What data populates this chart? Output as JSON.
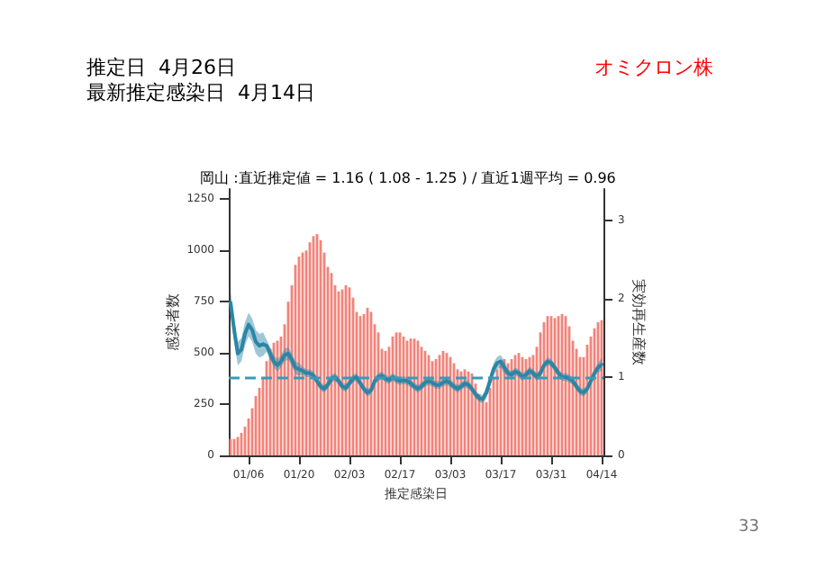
{
  "chart_data": {
    "type": "bar",
    "title": "岡山 :直近推定値 = 1.16 ( 1.08 - 1.25 ) / 直近1週平均 = 0.96",
    "xlabel": "推定感染日",
    "ylabel": "感染者数",
    "y2label": "実効再生産数",
    "annotations": [
      "推定日  4月26日",
      "最新推定感染日  4月14日",
      "オミクロン株",
      "33"
    ],
    "categories": [
      null,
      null,
      null,
      null,
      null,
      "01/06",
      null,
      null,
      null,
      null,
      null,
      null,
      null,
      null,
      null,
      null,
      null,
      null,
      null,
      "01/20",
      null,
      null,
      null,
      null,
      null,
      null,
      null,
      null,
      null,
      null,
      null,
      null,
      null,
      "02/03",
      null,
      null,
      null,
      null,
      null,
      null,
      null,
      null,
      null,
      null,
      null,
      null,
      null,
      "02/17",
      null,
      null,
      null,
      null,
      null,
      null,
      null,
      null,
      null,
      null,
      null,
      null,
      null,
      "03/03",
      null,
      null,
      null,
      null,
      null,
      null,
      null,
      null,
      null,
      null,
      null,
      null,
      null,
      "03/17",
      null,
      null,
      null,
      null,
      null,
      null,
      null,
      null,
      null,
      null,
      null,
      null,
      null,
      "03/31",
      null,
      null,
      null,
      null,
      null,
      null,
      null,
      null,
      null,
      null,
      null,
      null,
      null,
      "04/14"
    ],
    "series": [
      {
        "color": "#f2837a",
        "values": [
          80,
          80,
          90,
          110,
          140,
          180,
          230,
          290,
          330,
          380,
          460,
          520,
          550,
          560,
          580,
          640,
          750,
          830,
          930,
          970,
          990,
          1000,
          1040,
          1070,
          1080,
          1050,
          990,
          920,
          890,
          830,
          800,
          810,
          830,
          820,
          770,
          700,
          680,
          690,
          720,
          700,
          640,
          600,
          520,
          510,
          530,
          580,
          600,
          600,
          580,
          560,
          570,
          570,
          560,
          530,
          510,
          490,
          460,
          470,
          490,
          510,
          500,
          480,
          450,
          420,
          410,
          420,
          410,
          400,
          350,
          300,
          270,
          260,
          330,
          380,
          420,
          450,
          470,
          450,
          470,
          490,
          500,
          480,
          470,
          480,
          490,
          530,
          600,
          650,
          680,
          680,
          670,
          680,
          690,
          680,
          630,
          560,
          520,
          480,
          480,
          540,
          580,
          620,
          650,
          660
        ]
      },
      {
        "type": "line",
        "axis": "y2",
        "color": "#2b86a6",
        "values": [
          1.95,
          1.6,
          1.3,
          1.35,
          1.55,
          1.67,
          1.6,
          1.45,
          1.4,
          1.42,
          1.4,
          1.3,
          1.2,
          1.15,
          1.2,
          1.28,
          1.3,
          1.22,
          1.12,
          1.1,
          1.08,
          1.05,
          1.05,
          1.02,
          0.95,
          0.88,
          0.85,
          0.9,
          0.98,
          1.0,
          0.95,
          0.88,
          0.86,
          0.92,
          0.98,
          1.0,
          0.92,
          0.85,
          0.8,
          0.83,
          0.95,
          1.0,
          1.02,
          0.98,
          0.96,
          1.0,
          0.97,
          0.95,
          0.96,
          0.95,
          0.92,
          0.88,
          0.85,
          0.88,
          0.93,
          0.95,
          0.93,
          0.9,
          0.9,
          0.93,
          0.95,
          0.92,
          0.88,
          0.85,
          0.88,
          0.92,
          0.9,
          0.85,
          0.78,
          0.73,
          0.72,
          0.8,
          0.95,
          1.1,
          1.18,
          1.2,
          1.12,
          1.05,
          1.03,
          1.07,
          1.05,
          1.0,
          1.03,
          1.08,
          1.05,
          1.0,
          1.05,
          1.15,
          1.2,
          1.18,
          1.12,
          1.05,
          1.0,
          1.0,
          0.98,
          0.95,
          0.88,
          0.82,
          0.8,
          0.85,
          0.95,
          1.05,
          1.12,
          1.16
        ],
        "upper": [
          2.1,
          1.75,
          1.45,
          1.5,
          1.7,
          1.82,
          1.75,
          1.6,
          1.55,
          1.57,
          1.48,
          1.38,
          1.28,
          1.23,
          1.28,
          1.36,
          1.38,
          1.3,
          1.2,
          1.18,
          1.13,
          1.1,
          1.1,
          1.07,
          1.0,
          0.93,
          0.9,
          0.95,
          1.03,
          1.05,
          1.0,
          0.93,
          0.91,
          0.97,
          1.03,
          1.05,
          0.97,
          0.9,
          0.85,
          0.88,
          1.0,
          1.05,
          1.07,
          1.03,
          1.01,
          1.05,
          1.02,
          1.0,
          1.01,
          1.0,
          0.97,
          0.93,
          0.9,
          0.93,
          0.98,
          1.0,
          0.98,
          0.95,
          0.95,
          0.98,
          1.0,
          0.97,
          0.93,
          0.9,
          0.93,
          0.97,
          0.95,
          0.9,
          0.83,
          0.78,
          0.77,
          0.88,
          1.03,
          1.18,
          1.26,
          1.28,
          1.2,
          1.1,
          1.08,
          1.12,
          1.1,
          1.05,
          1.08,
          1.13,
          1.1,
          1.05,
          1.1,
          1.2,
          1.25,
          1.23,
          1.17,
          1.1,
          1.05,
          1.05,
          1.03,
          1.0,
          0.93,
          0.87,
          0.85,
          0.9,
          1.0,
          1.1,
          1.18,
          1.25
        ],
        "lower": [
          1.8,
          1.45,
          1.15,
          1.2,
          1.4,
          1.52,
          1.45,
          1.3,
          1.25,
          1.27,
          1.32,
          1.22,
          1.12,
          1.07,
          1.12,
          1.2,
          1.22,
          1.14,
          1.04,
          1.02,
          1.03,
          1.0,
          1.0,
          0.97,
          0.9,
          0.83,
          0.8,
          0.85,
          0.93,
          0.95,
          0.9,
          0.83,
          0.81,
          0.87,
          0.93,
          0.95,
          0.87,
          0.8,
          0.75,
          0.78,
          0.9,
          0.95,
          0.97,
          0.93,
          0.91,
          0.95,
          0.92,
          0.9,
          0.91,
          0.9,
          0.87,
          0.83,
          0.8,
          0.83,
          0.88,
          0.9,
          0.88,
          0.85,
          0.85,
          0.88,
          0.9,
          0.87,
          0.83,
          0.8,
          0.83,
          0.87,
          0.85,
          0.8,
          0.73,
          0.68,
          0.67,
          0.72,
          0.87,
          1.02,
          1.1,
          1.12,
          1.04,
          1.0,
          0.98,
          1.02,
          1.0,
          0.95,
          0.98,
          1.03,
          1.0,
          0.95,
          1.0,
          1.1,
          1.15,
          1.13,
          1.07,
          1.0,
          0.95,
          0.95,
          0.93,
          0.9,
          0.83,
          0.77,
          0.75,
          0.8,
          0.9,
          1.0,
          1.06,
          1.08
        ]
      }
    ],
    "ylim": [
      0,
      1300
    ],
    "yticks": [
      0,
      250,
      500,
      750,
      1000,
      1250
    ],
    "y2lim": [
      0,
      3.4
    ],
    "y2ticks": [
      0,
      1,
      2,
      3
    ],
    "ref_lines": [
      {
        "axis": "y2",
        "value": 1,
        "color": "#3a9ab8",
        "line_style": "dashed"
      }
    ],
    "grid": false,
    "marker": "none",
    "line_style": "solid"
  }
}
